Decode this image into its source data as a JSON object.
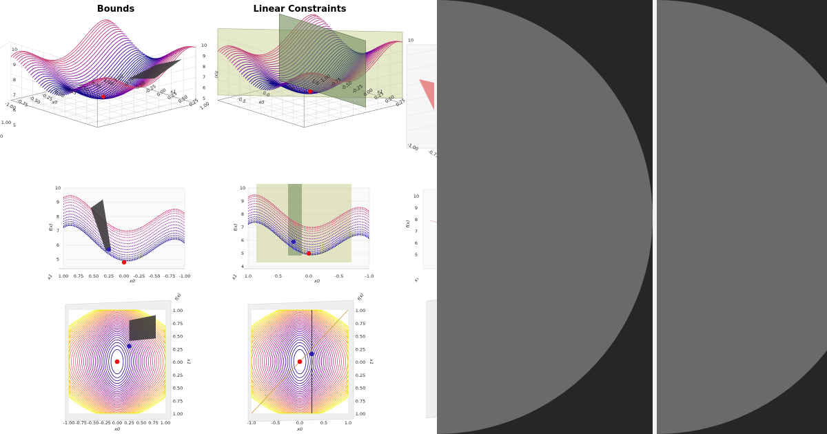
{
  "titles": {
    "bounds": "Bounds",
    "linear": "Linear Constraints"
  },
  "colors": {
    "background": "#ffffff",
    "overlay_dark": "#262626",
    "overlay_circle": "#6a6a6a",
    "divider": "#f2f2f2",
    "constraint_plane": "#c8cc8a",
    "constraint_plane_dark": "#6f8a5a",
    "bound_surface": "#333333",
    "minimum_marker": "#e81010",
    "constrained_marker": "#2a1fb0",
    "colormap": [
      "#0d0887",
      "#6a00a8",
      "#b12a90",
      "#e16462",
      "#fca636",
      "#f0f921"
    ]
  },
  "chart_data": [
    {
      "type": "surface-3d",
      "panel": "bounds-top",
      "title": "Bounds",
      "xlabel": "x0",
      "ylabel": "x1",
      "zlabel": "f(x)",
      "x_ticks": [
        "-1.00",
        "-0.75",
        "-0.50",
        "-0.25",
        "0.00",
        "0.25",
        "0.50",
        "0.75",
        "1.00"
      ],
      "y_ticks": [
        "1.00",
        "0.75",
        "0.50",
        "0.25",
        "0.00",
        "-0.25",
        "-0.50",
        "-0.75",
        "-1.00"
      ],
      "z_ticks": [
        "10",
        "9",
        "8",
        "7",
        "6",
        "5"
      ],
      "xlim": [
        -1,
        1
      ],
      "ylim": [
        -1,
        1
      ],
      "zlim": [
        4.5,
        10
      ]
    },
    {
      "type": "surface-3d",
      "panel": "linear-top",
      "title": "Linear Constraints",
      "xlabel": "x0",
      "ylabel": "x1",
      "zlabel": "f(x)",
      "x_ticks": [
        "-0.5",
        "0.0",
        "0.5",
        "1.0"
      ],
      "y_ticks": [
        "1.00",
        "0.75",
        "0.50",
        "0.25",
        "0.00",
        "-0.25",
        "-0.50",
        "-0.75",
        "-1.00"
      ],
      "z_ticks": [
        "10",
        "9",
        "8",
        "7",
        "6",
        "5",
        "4"
      ],
      "xlim": [
        -1,
        1
      ],
      "ylim": [
        -1,
        1
      ],
      "zlim": [
        4,
        10
      ]
    },
    {
      "type": "surface-3d-side",
      "panel": "bounds-mid",
      "xlabel": "x0",
      "ylabel": "x1",
      "zlabel": "f(x)",
      "x_ticks": [
        "1.00",
        "0.75",
        "0.50",
        "0.25",
        "0.00",
        "-0.25",
        "-0.50",
        "-0.75",
        "-1.00"
      ],
      "z_ticks": [
        "10",
        "9",
        "8",
        "7",
        "6",
        "5"
      ],
      "zlim": [
        4.5,
        10
      ],
      "points": [
        {
          "name": "",
          "x": 0.0,
          "z": 4.8,
          "color": "#e81010"
        },
        {
          "name": "",
          "x": 0.25,
          "z": 5.7,
          "color": "#2a1fb0"
        }
      ]
    },
    {
      "type": "surface-3d-side",
      "panel": "linear-mid",
      "xlabel": "x0",
      "ylabel": "x1",
      "zlabel": "f(x)",
      "x_ticks": [
        "1.0",
        "0.5",
        "0.0",
        "-0.5",
        "-1.0"
      ],
      "z_ticks": [
        "10",
        "9",
        "8",
        "7",
        "6",
        "5",
        "4"
      ],
      "zlim": [
        4,
        10
      ],
      "points": [
        {
          "name": "",
          "x": 0.0,
          "z": 5.0,
          "color": "#e81010"
        },
        {
          "name": "",
          "x": 0.25,
          "z": 5.9,
          "color": "#2a1fb0"
        }
      ]
    },
    {
      "type": "contour-top",
      "panel": "bounds-bottom",
      "xlabel": "x0",
      "ylabel": "x1",
      "zlabel": "f(x)",
      "x_ticks": [
        "-1.00",
        "-0.75",
        "-0.50",
        "-0.25",
        "0.00",
        "0.25",
        "0.50",
        "0.75",
        "1.00"
      ],
      "y_ticks": [
        "1.00",
        "0.75",
        "0.50",
        "0.25",
        "0.00",
        "0.25",
        "0.50",
        "0.75",
        "1.00"
      ],
      "xlim": [
        -1,
        1
      ],
      "ylim": [
        -1,
        1
      ],
      "points": [
        {
          "name": "",
          "x": 0.0,
          "y": 0.0,
          "color": "#e81010"
        },
        {
          "name": "",
          "x": 0.25,
          "y": 0.3,
          "color": "#2a1fb0"
        }
      ],
      "bound_box": {
        "x0": 0.25,
        "x1": 0.8,
        "y0": 0.3,
        "y1": 0.9
      }
    },
    {
      "type": "contour-top",
      "panel": "linear-bottom",
      "xlabel": "x0",
      "ylabel": "x1",
      "zlabel": "f(x)",
      "x_ticks": [
        "-1.0",
        "-0.5",
        "0.0",
        "0.5",
        "1.0"
      ],
      "y_ticks": [
        "1.00",
        "0.75",
        "0.50",
        "0.25",
        "0.00",
        "0.25",
        "0.50",
        "0.75",
        "1.00"
      ],
      "xlim": [
        -1,
        1
      ],
      "ylim": [
        -1,
        1
      ],
      "points": [
        {
          "name": "",
          "x": 0.0,
          "y": 0.0,
          "color": "#e81010"
        },
        {
          "name": "",
          "x": 0.25,
          "y": 0.15,
          "color": "#2a1fb0"
        }
      ],
      "constraint_lines": [
        {
          "kind": "vertical",
          "x": 0.25
        },
        {
          "kind": "diagonal",
          "slope": 1,
          "intercept": 0
        }
      ]
    }
  ],
  "overlay": {
    "description_circles": 2
  }
}
